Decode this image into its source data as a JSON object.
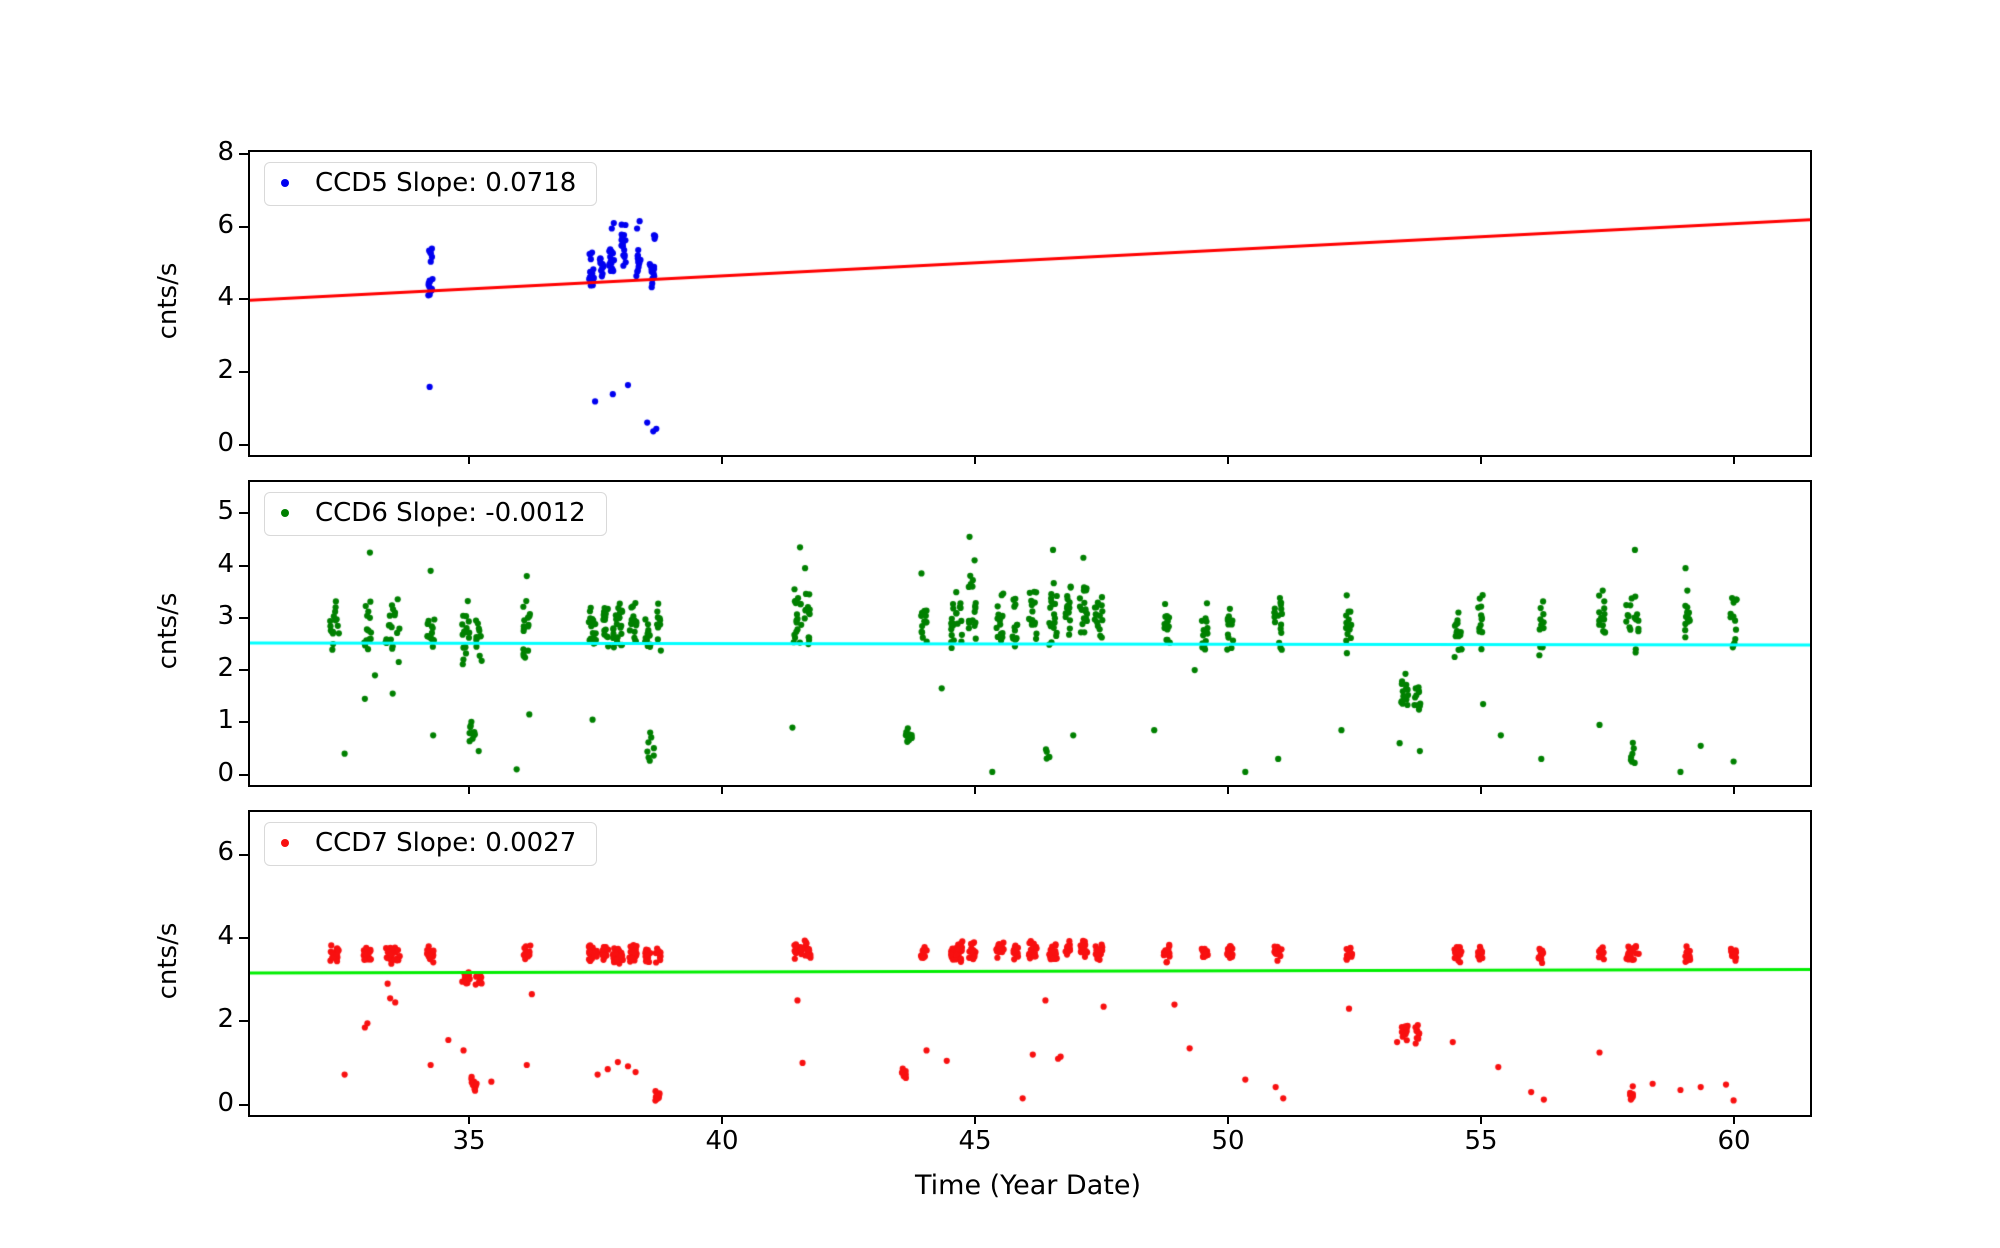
{
  "figure": {
    "background": "#ffffff",
    "xlabel": "Time (Year Date)",
    "xlim": [
      30.63,
      61.46
    ],
    "x_ticks": [
      35,
      40,
      45,
      50,
      55,
      60
    ],
    "x_tick_labels": [
      "35",
      "40",
      "45",
      "50",
      "55",
      "60"
    ]
  },
  "chart_data": [
    {
      "type": "scatter",
      "name": "CCD5",
      "legend": "CCD5 Slope: 0.0718",
      "slope": 0.0718,
      "ylabel": "cnts/s",
      "ylim": [
        -0.27,
        8.05
      ],
      "y_ticks": [
        0,
        2,
        4,
        6,
        8
      ],
      "y_tick_labels": [
        "0",
        "2",
        "4",
        "6",
        "8"
      ],
      "marker_color": "#0000f0",
      "fit_line": {
        "color": "#ff0000",
        "slope": 0.0718,
        "y_at_46": 5.08
      },
      "legend_position": "upper-left",
      "clusters": [
        [
          34.2,
          12,
          4.1,
          4.75,
          0.1
        ],
        [
          34.2,
          6,
          4.8,
          5.55,
          0.08
        ],
        [
          37.38,
          14,
          4.2,
          5.0,
          0.1
        ],
        [
          37.38,
          4,
          5.05,
          5.45,
          0.08
        ],
        [
          37.58,
          12,
          4.5,
          5.3,
          0.08
        ],
        [
          37.78,
          14,
          4.6,
          5.6,
          0.1
        ],
        [
          38.02,
          16,
          4.9,
          6.2,
          0.1
        ],
        [
          38.3,
          12,
          4.6,
          5.5,
          0.1
        ],
        [
          38.58,
          14,
          4.3,
          5.15,
          0.1
        ],
        [
          38.62,
          4,
          5.5,
          6.0,
          0.06
        ]
      ],
      "outliers": [
        [
          37.78,
          5.95
        ],
        [
          37.82,
          6.1
        ],
        [
          38.28,
          5.95
        ],
        [
          38.33,
          6.15
        ],
        [
          34.18,
          1.6
        ],
        [
          37.45,
          1.2
        ],
        [
          37.8,
          1.4
        ],
        [
          38.1,
          1.65
        ],
        [
          38.48,
          0.62
        ],
        [
          38.6,
          0.38
        ],
        [
          38.66,
          0.45
        ]
      ]
    },
    {
      "type": "scatter",
      "name": "CCD6",
      "legend": "CCD6 Slope: -0.0012",
      "slope": -0.0012,
      "ylabel": "cnts/s",
      "ylim": [
        -0.2,
        5.6
      ],
      "y_ticks": [
        0,
        1,
        2,
        3,
        4,
        5
      ],
      "y_tick_labels": [
        "0",
        "1",
        "2",
        "3",
        "4",
        "5"
      ],
      "marker_color": "#008000",
      "fit_line": {
        "color": "#00ffff",
        "slope": -0.0012,
        "y_at_46": 2.5
      },
      "legend_position": "upper-left",
      "clusters": [
        [
          32.3,
          16,
          2.3,
          3.5,
          0.18
        ],
        [
          32.95,
          14,
          2.25,
          3.35,
          0.15
        ],
        [
          33.45,
          18,
          2.0,
          3.6,
          0.3
        ],
        [
          34.2,
          14,
          2.2,
          3.35,
          0.15
        ],
        [
          34.9,
          16,
          1.9,
          3.4,
          0.15
        ],
        [
          35.15,
          12,
          2.0,
          3.3,
          0.12
        ],
        [
          36.1,
          16,
          2.2,
          3.6,
          0.15
        ],
        [
          37.4,
          20,
          2.2,
          3.5,
          0.15
        ],
        [
          37.65,
          16,
          2.3,
          3.6,
          0.12
        ],
        [
          37.9,
          24,
          2.2,
          3.4,
          0.2
        ],
        [
          38.2,
          18,
          2.3,
          3.5,
          0.15
        ],
        [
          38.5,
          14,
          2.1,
          3.3,
          0.12
        ],
        [
          38.7,
          10,
          2.3,
          3.55,
          0.1
        ],
        [
          41.45,
          18,
          2.3,
          3.7,
          0.15
        ],
        [
          41.65,
          14,
          2.4,
          3.6,
          0.12
        ],
        [
          43.95,
          14,
          2.4,
          3.5,
          0.12
        ],
        [
          44.6,
          22,
          2.3,
          3.8,
          0.25
        ],
        [
          44.9,
          18,
          2.4,
          3.9,
          0.15
        ],
        [
          45.45,
          16,
          2.4,
          3.7,
          0.15
        ],
        [
          45.75,
          14,
          2.3,
          3.6,
          0.12
        ],
        [
          46.1,
          16,
          2.4,
          3.75,
          0.15
        ],
        [
          46.5,
          18,
          2.3,
          3.8,
          0.15
        ],
        [
          46.8,
          16,
          2.5,
          3.9,
          0.12
        ],
        [
          47.1,
          18,
          2.4,
          3.8,
          0.15
        ],
        [
          47.4,
          16,
          2.3,
          3.6,
          0.15
        ],
        [
          48.75,
          14,
          2.3,
          3.5,
          0.12
        ],
        [
          49.5,
          14,
          2.2,
          3.4,
          0.12
        ],
        [
          50.0,
          14,
          2.3,
          3.45,
          0.12
        ],
        [
          50.95,
          18,
          2.2,
          3.7,
          0.15
        ],
        [
          52.35,
          14,
          2.2,
          3.5,
          0.12
        ],
        [
          54.5,
          16,
          2.0,
          3.4,
          0.15
        ],
        [
          54.95,
          12,
          2.2,
          3.5,
          0.1
        ],
        [
          56.15,
          12,
          2.2,
          3.4,
          0.1
        ],
        [
          57.35,
          14,
          2.3,
          3.7,
          0.12
        ],
        [
          57.95,
          18,
          2.2,
          3.75,
          0.25
        ],
        [
          59.05,
          14,
          2.3,
          3.6,
          0.12
        ],
        [
          59.95,
          14,
          2.3,
          3.65,
          0.12
        ],
        [
          35.02,
          10,
          0.6,
          1.05,
          0.12
        ],
        [
          43.65,
          10,
          0.55,
          0.9,
          0.12
        ],
        [
          53.45,
          14,
          1.0,
          1.95,
          0.15
        ],
        [
          53.7,
          12,
          1.05,
          1.9,
          0.12
        ],
        [
          57.95,
          7,
          0.05,
          0.85,
          0.1
        ],
        [
          38.55,
          8,
          0.1,
          0.9,
          0.15
        ],
        [
          46.4,
          5,
          0.05,
          0.6,
          0.08
        ]
      ],
      "outliers": [
        [
          32.5,
          0.4
        ],
        [
          32.9,
          1.45
        ],
        [
          33.0,
          4.25
        ],
        [
          33.1,
          1.9
        ],
        [
          33.45,
          1.55
        ],
        [
          34.2,
          3.9
        ],
        [
          34.25,
          0.75
        ],
        [
          35.15,
          0.45
        ],
        [
          35.9,
          0.1
        ],
        [
          36.1,
          3.8
        ],
        [
          36.15,
          1.15
        ],
        [
          37.4,
          1.05
        ],
        [
          41.35,
          0.9
        ],
        [
          41.5,
          4.35
        ],
        [
          41.6,
          3.95
        ],
        [
          43.9,
          3.85
        ],
        [
          44.3,
          1.65
        ],
        [
          44.85,
          4.55
        ],
        [
          44.95,
          4.1
        ],
        [
          45.3,
          0.05
        ],
        [
          46.5,
          4.3
        ],
        [
          46.9,
          0.75
        ],
        [
          47.1,
          4.15
        ],
        [
          48.5,
          0.85
        ],
        [
          49.3,
          2.0
        ],
        [
          50.3,
          0.05
        ],
        [
          50.95,
          0.3
        ],
        [
          52.2,
          0.85
        ],
        [
          53.35,
          0.6
        ],
        [
          53.75,
          0.45
        ],
        [
          55.0,
          1.35
        ],
        [
          55.35,
          0.75
        ],
        [
          56.15,
          0.3
        ],
        [
          57.3,
          0.95
        ],
        [
          58.0,
          4.3
        ],
        [
          58.9,
          0.05
        ],
        [
          59.0,
          3.95
        ],
        [
          59.3,
          0.55
        ],
        [
          59.95,
          0.25
        ]
      ]
    },
    {
      "type": "scatter",
      "name": "CCD7",
      "legend": "CCD7 Slope: 0.0027",
      "slope": 0.0027,
      "ylabel": "cnts/s",
      "ylim": [
        -0.25,
        7.02
      ],
      "y_ticks": [
        0,
        2,
        4,
        6
      ],
      "y_tick_labels": [
        "0",
        "2",
        "4",
        "6"
      ],
      "marker_color": "#f81010",
      "fit_line": {
        "color": "#00ee00",
        "slope": 0.0027,
        "y_at_46": 3.2
      },
      "legend_position": "upper-left",
      "clusters": [
        [
          32.3,
          18,
          3.35,
          3.85,
          0.18
        ],
        [
          32.95,
          16,
          3.4,
          3.85,
          0.15
        ],
        [
          33.45,
          20,
          3.3,
          3.9,
          0.3
        ],
        [
          34.2,
          16,
          3.4,
          3.85,
          0.15
        ],
        [
          34.9,
          14,
          2.75,
          3.25,
          0.15
        ],
        [
          35.15,
          10,
          2.7,
          3.2,
          0.12
        ],
        [
          36.1,
          16,
          3.4,
          3.85,
          0.15
        ],
        [
          37.4,
          22,
          3.4,
          3.9,
          0.18
        ],
        [
          37.65,
          18,
          3.45,
          3.9,
          0.12
        ],
        [
          37.9,
          26,
          3.35,
          3.85,
          0.2
        ],
        [
          38.2,
          20,
          3.4,
          3.9,
          0.15
        ],
        [
          38.5,
          16,
          3.35,
          3.85,
          0.12
        ],
        [
          38.7,
          10,
          3.4,
          3.85,
          0.1
        ],
        [
          41.45,
          20,
          3.45,
          3.95,
          0.15
        ],
        [
          41.65,
          16,
          3.5,
          3.95,
          0.12
        ],
        [
          43.95,
          14,
          3.4,
          3.85,
          0.12
        ],
        [
          44.6,
          24,
          3.4,
          3.95,
          0.25
        ],
        [
          44.9,
          20,
          3.45,
          3.95,
          0.15
        ],
        [
          45.45,
          18,
          3.45,
          3.95,
          0.15
        ],
        [
          45.75,
          16,
          3.4,
          3.9,
          0.12
        ],
        [
          46.1,
          18,
          3.45,
          3.95,
          0.15
        ],
        [
          46.5,
          20,
          3.4,
          3.95,
          0.15
        ],
        [
          46.8,
          16,
          3.5,
          3.95,
          0.12
        ],
        [
          47.1,
          20,
          3.45,
          3.95,
          0.15
        ],
        [
          47.4,
          18,
          3.4,
          3.9,
          0.15
        ],
        [
          48.75,
          16,
          3.4,
          3.9,
          0.12
        ],
        [
          49.5,
          14,
          3.35,
          3.85,
          0.12
        ],
        [
          50.0,
          14,
          3.4,
          3.85,
          0.12
        ],
        [
          50.95,
          18,
          3.4,
          3.9,
          0.15
        ],
        [
          52.35,
          14,
          3.35,
          3.85,
          0.12
        ],
        [
          53.45,
          12,
          1.45,
          2.0,
          0.12
        ],
        [
          53.7,
          10,
          1.4,
          1.95,
          0.1
        ],
        [
          54.5,
          16,
          3.35,
          3.85,
          0.15
        ],
        [
          54.95,
          12,
          3.4,
          3.85,
          0.1
        ],
        [
          56.15,
          12,
          3.35,
          3.8,
          0.1
        ],
        [
          57.35,
          14,
          3.4,
          3.9,
          0.12
        ],
        [
          57.95,
          18,
          3.35,
          3.9,
          0.25
        ],
        [
          59.05,
          14,
          3.4,
          3.9,
          0.12
        ],
        [
          59.95,
          14,
          3.35,
          3.85,
          0.12
        ],
        [
          35.05,
          12,
          0.25,
          0.7,
          0.12
        ],
        [
          38.68,
          10,
          0.05,
          0.5,
          0.1
        ],
        [
          43.55,
          8,
          0.6,
          0.9,
          0.1
        ],
        [
          57.93,
          8,
          0.08,
          0.45,
          0.08
        ]
      ],
      "outliers": [
        [
          32.5,
          0.72
        ],
        [
          32.9,
          1.85
        ],
        [
          32.95,
          1.95
        ],
        [
          33.35,
          2.9
        ],
        [
          33.4,
          2.55
        ],
        [
          33.5,
          2.45
        ],
        [
          34.2,
          0.95
        ],
        [
          34.55,
          1.55
        ],
        [
          34.85,
          1.3
        ],
        [
          35.4,
          0.55
        ],
        [
          36.1,
          0.95
        ],
        [
          36.2,
          2.65
        ],
        [
          37.5,
          0.72
        ],
        [
          37.7,
          0.85
        ],
        [
          37.9,
          1.02
        ],
        [
          38.1,
          0.92
        ],
        [
          38.25,
          0.78
        ],
        [
          41.55,
          1.0
        ],
        [
          41.45,
          2.5
        ],
        [
          44.0,
          1.3
        ],
        [
          44.4,
          1.05
        ],
        [
          45.9,
          0.15
        ],
        [
          46.1,
          1.2
        ],
        [
          46.35,
          2.5
        ],
        [
          46.6,
          1.1
        ],
        [
          46.65,
          1.15
        ],
        [
          47.5,
          2.35
        ],
        [
          48.9,
          2.4
        ],
        [
          49.2,
          1.35
        ],
        [
          50.3,
          0.6
        ],
        [
          50.9,
          0.42
        ],
        [
          51.05,
          0.15
        ],
        [
          52.35,
          2.3
        ],
        [
          53.3,
          1.5
        ],
        [
          54.4,
          1.5
        ],
        [
          55.3,
          0.9
        ],
        [
          55.95,
          0.3
        ],
        [
          56.2,
          0.12
        ],
        [
          57.3,
          1.25
        ],
        [
          58.35,
          0.5
        ],
        [
          58.9,
          0.35
        ],
        [
          59.3,
          0.42
        ],
        [
          59.8,
          0.48
        ],
        [
          59.95,
          0.1
        ]
      ]
    }
  ]
}
